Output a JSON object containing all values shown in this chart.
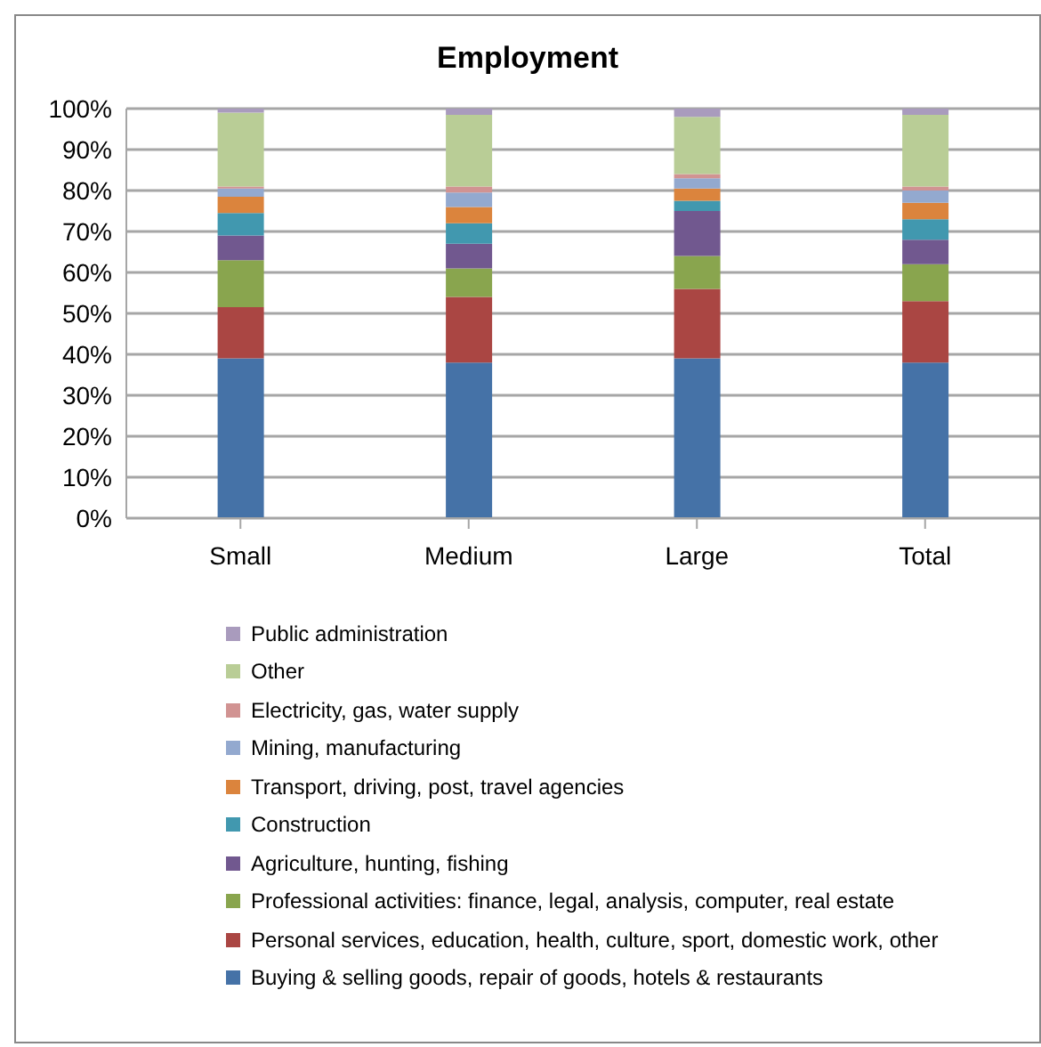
{
  "chart_data": {
    "type": "bar",
    "title": "Employment",
    "categories": [
      "Small",
      "Medium",
      "Large",
      "Total"
    ],
    "stacked": true,
    "ylim": [
      0,
      100
    ],
    "yticks": [
      {
        "value": 0,
        "label": "0%"
      },
      {
        "value": 10,
        "label": "10%"
      },
      {
        "value": 20,
        "label": "20%"
      },
      {
        "value": 30,
        "label": "30%"
      },
      {
        "value": 40,
        "label": "40%"
      },
      {
        "value": 50,
        "label": "50%"
      },
      {
        "value": 60,
        "label": "60%"
      },
      {
        "value": 70,
        "label": "70%"
      },
      {
        "value": 80,
        "label": "80%"
      },
      {
        "value": 90,
        "label": "90%"
      },
      {
        "value": 100,
        "label": "100%"
      }
    ],
    "grid": "y",
    "legend": "bottom",
    "series": [
      {
        "name": "Buying & selling goods, repair of goods, hotels & restaurants",
        "color": "#4572a7",
        "values": [
          39,
          38,
          39,
          38
        ]
      },
      {
        "name": "Personal services, education, health, culture, sport, domestic work, other",
        "color": "#aa4643",
        "values": [
          12.5,
          16,
          17,
          15
        ]
      },
      {
        "name": "Professional activities: finance, legal, analysis, computer, real estate",
        "color": "#89a54e",
        "values": [
          11.5,
          7,
          8,
          9
        ]
      },
      {
        "name": "Agriculture, hunting, fishing",
        "color": "#71588f",
        "values": [
          6,
          6,
          11,
          6
        ]
      },
      {
        "name": "Construction",
        "color": "#4198af",
        "values": [
          5.5,
          5,
          2.5,
          5
        ]
      },
      {
        "name": "Transport, driving, post, travel agencies",
        "color": "#db843d",
        "values": [
          4,
          4,
          3,
          4
        ]
      },
      {
        "name": "Mining, manufacturing",
        "color": "#93a9cf",
        "values": [
          2,
          3.5,
          2.5,
          3
        ]
      },
      {
        "name": "Electricity, gas, water supply",
        "color": "#d19392",
        "values": [
          0.5,
          1.5,
          1,
          1
        ]
      },
      {
        "name": "Other",
        "color": "#b9cd96",
        "values": [
          18,
          17.5,
          14,
          17.5
        ]
      },
      {
        "name": "Public administration",
        "color": "#a99bbd",
        "values": [
          1,
          1.5,
          2,
          1.5
        ]
      }
    ]
  }
}
